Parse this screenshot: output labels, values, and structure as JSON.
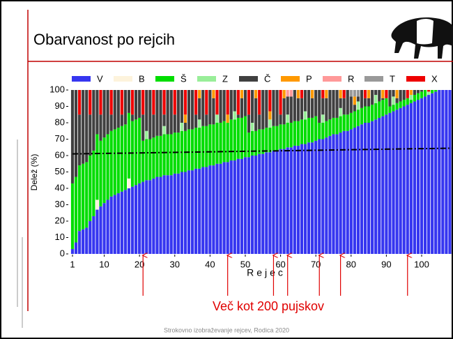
{
  "title": "Obarvanost po rejcih",
  "footer": "Strokovno izobraževanje rejcev, Rodica 2020",
  "chart_data": {
    "type": "stacked-bar",
    "y_label": "Delež (%)",
    "x_label": "Rejec",
    "ylim": [
      0,
      100
    ],
    "yticks": [
      0,
      10,
      20,
      30,
      40,
      50,
      60,
      70,
      80,
      90,
      100
    ],
    "xlim": [
      1,
      108
    ],
    "xticks": [
      1,
      10,
      20,
      30,
      40,
      50,
      60,
      70,
      80,
      90,
      100
    ],
    "x": [
      1,
      2,
      3,
      4,
      5,
      6,
      7,
      8,
      9,
      10,
      11,
      12,
      13,
      14,
      15,
      16,
      17,
      18,
      19,
      20,
      21,
      22,
      23,
      24,
      25,
      26,
      27,
      28,
      29,
      30,
      31,
      32,
      33,
      34,
      35,
      36,
      37,
      38,
      39,
      40,
      41,
      42,
      43,
      44,
      45,
      46,
      47,
      48,
      49,
      50,
      51,
      52,
      53,
      54,
      55,
      56,
      57,
      58,
      59,
      60,
      61,
      62,
      63,
      64,
      65,
      66,
      67,
      68,
      69,
      70,
      71,
      72,
      73,
      74,
      75,
      76,
      77,
      78,
      79,
      80,
      81,
      82,
      83,
      84,
      85,
      86,
      87,
      88,
      89,
      90,
      91,
      92,
      93,
      94,
      95,
      96,
      97,
      98,
      99,
      100,
      101,
      102,
      103,
      104,
      105,
      106,
      107,
      108
    ],
    "series": [
      {
        "name": "V",
        "color": "#3636f0",
        "values": [
          3,
          7,
          14,
          15,
          16,
          20,
          23,
          27,
          29,
          31,
          33,
          35,
          36,
          37,
          38,
          39,
          40,
          41,
          42,
          43,
          44,
          45,
          45,
          46,
          47,
          47,
          48,
          48,
          48,
          49,
          49,
          50,
          50,
          51,
          51,
          52,
          52,
          53,
          53,
          54,
          54,
          55,
          55,
          56,
          56,
          57,
          57,
          58,
          58,
          59,
          59,
          60,
          60,
          61,
          61,
          62,
          62,
          63,
          63,
          64,
          64,
          65,
          65,
          66,
          66,
          67,
          67,
          68,
          68,
          69,
          70,
          70,
          71,
          72,
          73,
          73,
          74,
          75,
          75,
          76,
          77,
          78,
          79,
          80,
          80,
          81,
          82,
          83,
          84,
          85,
          86,
          87,
          88,
          89,
          90,
          91,
          92,
          93,
          94,
          95,
          96,
          97,
          98,
          99,
          100,
          100,
          100,
          100
        ]
      },
      {
        "name": "B",
        "color": "#fdf3dc",
        "values": [
          0,
          0,
          0,
          0,
          0,
          0,
          0,
          6,
          0,
          0,
          0,
          0,
          0,
          0,
          0,
          0,
          6,
          0,
          0,
          0,
          0,
          0,
          0,
          0,
          0,
          0,
          0,
          0,
          0,
          0,
          0,
          0,
          0,
          0,
          0,
          0,
          0,
          0,
          0,
          0,
          0,
          0,
          0,
          0,
          0,
          0,
          0,
          0,
          0,
          0,
          0,
          0,
          0,
          0,
          0,
          0,
          0,
          0,
          0,
          0,
          0,
          0,
          0,
          0,
          0,
          0,
          0,
          0,
          0,
          0,
          0,
          0,
          0,
          0,
          0,
          0,
          0,
          0,
          0,
          0,
          0,
          0,
          0,
          0,
          0,
          0,
          0,
          0,
          0,
          0,
          0,
          0,
          0,
          0,
          0,
          0,
          0,
          0,
          0,
          0,
          0,
          0,
          0,
          0,
          0,
          0,
          0,
          0
        ]
      },
      {
        "name": "Š",
        "color": "#00dd00",
        "values": [
          40,
          40,
          40,
          40,
          40,
          40,
          40,
          40,
          40,
          40,
          40,
          40,
          40,
          40,
          40,
          40,
          40,
          40,
          40,
          40,
          25,
          25,
          25,
          25,
          25,
          25,
          25,
          25,
          25,
          25,
          25,
          25,
          25,
          25,
          25,
          25,
          25,
          25,
          25,
          25,
          25,
          25,
          25,
          25,
          24,
          25,
          25,
          25,
          25,
          25,
          15,
          15,
          15,
          15,
          15,
          15,
          15,
          15,
          15,
          15,
          15,
          15,
          15,
          15,
          15,
          15,
          15,
          15,
          15,
          15,
          10,
          10,
          10,
          10,
          10,
          10,
          10,
          10,
          10,
          10,
          10,
          10,
          10,
          10,
          10,
          10,
          10,
          10,
          10,
          10,
          4,
          4,
          4,
          4,
          4,
          4,
          2,
          4,
          4,
          4,
          4,
          0,
          2,
          1,
          0,
          0,
          0,
          0
        ]
      },
      {
        "name": "Z",
        "color": "#99ee99",
        "values": [
          0,
          0,
          0,
          0,
          0,
          0,
          0,
          0,
          0,
          0,
          0,
          0,
          0,
          0,
          0,
          0,
          0,
          0,
          0,
          0,
          0,
          5,
          0,
          0,
          0,
          0,
          5,
          0,
          0,
          0,
          0,
          5,
          0,
          0,
          0,
          0,
          5,
          0,
          0,
          0,
          0,
          5,
          0,
          0,
          0,
          0,
          5,
          0,
          0,
          0,
          0,
          5,
          0,
          0,
          0,
          0,
          5,
          0,
          0,
          0,
          0,
          5,
          0,
          0,
          0,
          0,
          5,
          0,
          0,
          0,
          0,
          5,
          0,
          0,
          0,
          0,
          5,
          0,
          0,
          0,
          0,
          5,
          0,
          0,
          0,
          0,
          5,
          0,
          0,
          0,
          0,
          5,
          0,
          0,
          0,
          0,
          3,
          0,
          0,
          0,
          0,
          2,
          0,
          0,
          0,
          0,
          0,
          0
        ]
      },
      {
        "name": "Č",
        "color": "#404040",
        "values": [
          57,
          53,
          31,
          45,
          44,
          25,
          37,
          27,
          16,
          29,
          27,
          10,
          24,
          23,
          7,
          21,
          14,
          4,
          18,
          17,
          16,
          25,
          30,
          14,
          28,
          28,
          7,
          27,
          27,
          11,
          26,
          20,
          5,
          24,
          24,
          8,
          13,
          22,
          7,
          21,
          16,
          0,
          20,
          19,
          0,
          18,
          13,
          2,
          12,
          16,
          11,
          20,
          20,
          9,
          24,
          23,
          0,
          22,
          22,
          6,
          16,
          11,
          16,
          19,
          14,
          13,
          13,
          17,
          12,
          16,
          20,
          10,
          14,
          18,
          17,
          17,
          6,
          10,
          15,
          10,
          4,
          3,
          11,
          5,
          5,
          9,
          3,
          7,
          1,
          0,
          10,
          4,
          3,
          7,
          6,
          0,
          0,
          3,
          2,
          1,
          0,
          0,
          0,
          0,
          0,
          0,
          0,
          0
        ]
      },
      {
        "name": "P",
        "color": "#ff9900",
        "values": [
          0,
          0,
          0,
          0,
          0,
          0,
          0,
          0,
          0,
          0,
          0,
          0,
          0,
          0,
          0,
          0,
          0,
          0,
          0,
          0,
          0,
          0,
          0,
          0,
          0,
          0,
          0,
          0,
          0,
          0,
          0,
          0,
          5,
          0,
          0,
          0,
          5,
          0,
          0,
          0,
          5,
          0,
          0,
          0,
          5,
          0,
          0,
          0,
          5,
          0,
          0,
          0,
          5,
          0,
          0,
          0,
          5,
          0,
          0,
          0,
          5,
          0,
          0,
          0,
          5,
          0,
          0,
          0,
          5,
          0,
          0,
          0,
          5,
          0,
          0,
          0,
          5,
          0,
          0,
          0,
          5,
          0,
          0,
          0,
          5,
          0,
          0,
          0,
          5,
          0,
          0,
          0,
          5,
          0,
          0,
          0,
          3,
          0,
          0,
          0,
          0,
          0,
          0,
          0,
          0,
          0,
          0,
          0
        ]
      },
      {
        "name": "R",
        "color": "#ff9999",
        "values": [
          0,
          0,
          0,
          0,
          0,
          0,
          0,
          0,
          0,
          0,
          0,
          0,
          0,
          0,
          0,
          0,
          0,
          0,
          0,
          0,
          0,
          0,
          0,
          0,
          0,
          0,
          0,
          0,
          0,
          0,
          0,
          0,
          0,
          0,
          0,
          0,
          0,
          0,
          0,
          0,
          0,
          0,
          0,
          0,
          0,
          0,
          0,
          0,
          0,
          0,
          0,
          0,
          0,
          0,
          0,
          0,
          0,
          0,
          0,
          0,
          0,
          4,
          4,
          0,
          0,
          0,
          0,
          0,
          0,
          0,
          0,
          0,
          0,
          0,
          0,
          0,
          0,
          0,
          0,
          0,
          0,
          0,
          0,
          0,
          0,
          0,
          0,
          0,
          0,
          0,
          0,
          0,
          0,
          0,
          0,
          0,
          0,
          0,
          0,
          0,
          0,
          0,
          0,
          0,
          0,
          0,
          0,
          0
        ]
      },
      {
        "name": "T",
        "color": "#999999",
        "values": [
          0,
          0,
          0,
          0,
          0,
          0,
          0,
          0,
          0,
          0,
          0,
          0,
          0,
          0,
          0,
          0,
          0,
          0,
          0,
          0,
          0,
          0,
          0,
          0,
          0,
          0,
          0,
          0,
          0,
          0,
          0,
          0,
          0,
          0,
          0,
          0,
          0,
          0,
          0,
          0,
          0,
          0,
          0,
          0,
          0,
          0,
          0,
          0,
          0,
          0,
          0,
          0,
          0,
          0,
          0,
          0,
          0,
          0,
          0,
          0,
          0,
          0,
          0,
          0,
          0,
          0,
          0,
          0,
          0,
          0,
          0,
          0,
          0,
          0,
          0,
          0,
          0,
          0,
          0,
          4,
          4,
          4,
          0,
          0,
          0,
          0,
          0,
          0,
          0,
          0,
          0,
          0,
          0,
          0,
          0,
          0,
          0,
          0,
          0,
          0,
          0,
          0,
          0,
          0,
          0,
          0,
          0,
          0
        ]
      },
      {
        "name": "X",
        "color": "#ee0000",
        "values": [
          0,
          0,
          15,
          0,
          0,
          15,
          0,
          0,
          15,
          0,
          0,
          15,
          0,
          0,
          15,
          0,
          0,
          15,
          0,
          0,
          15,
          0,
          0,
          15,
          0,
          0,
          15,
          0,
          0,
          15,
          0,
          0,
          15,
          0,
          0,
          15,
          0,
          0,
          15,
          0,
          0,
          15,
          0,
          0,
          15,
          0,
          0,
          15,
          0,
          0,
          15,
          0,
          0,
          15,
          0,
          0,
          13,
          0,
          0,
          15,
          0,
          0,
          0,
          0,
          0,
          5,
          0,
          0,
          0,
          0,
          0,
          5,
          0,
          0,
          0,
          0,
          0,
          5,
          0,
          0,
          0,
          0,
          0,
          5,
          0,
          0,
          0,
          0,
          0,
          5,
          0,
          0,
          0,
          0,
          0,
          5,
          0,
          0,
          0,
          0,
          0,
          1,
          0,
          0,
          0,
          0,
          0,
          0
        ]
      }
    ],
    "trend_line": [
      61,
      64.5
    ],
    "annotation": "Več kot 200 pujskov",
    "annotation_points": [
      21,
      45,
      58,
      62,
      71,
      77,
      96
    ]
  }
}
